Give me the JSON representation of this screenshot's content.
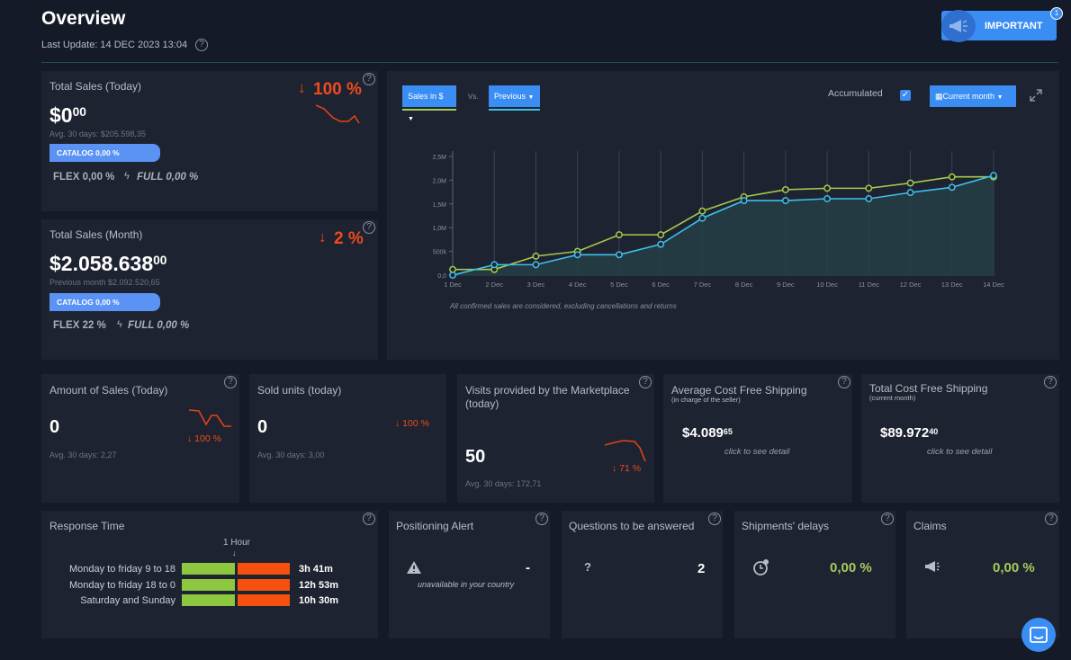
{
  "header": {
    "title": "Overview",
    "last_update": "Last Update: 14 DEC 2023 13:04",
    "important_label": "IMPORTANT",
    "important_badge": "1"
  },
  "today_sales": {
    "title": "Total Sales (Today)",
    "value_main": "$0",
    "value_cents": "00",
    "avg": "Avg. 30 days: $205.598,35",
    "change": "100 %",
    "catalog": "CATALOG 0,00 %",
    "flex": "FLEX 0,00 %",
    "full": "FULL 0,00 %"
  },
  "month_sales": {
    "title": "Total Sales (Month)",
    "value_main": "$2.058.638",
    "value_cents": "00",
    "previous": "Previous month $2.092.520,65",
    "change": "2 %",
    "catalog": "CATALOG 0,00 %",
    "flex": "FLEX 22 %",
    "full": "FULL 0,00 %"
  },
  "chart_panel": {
    "metric_select": "Sales in $",
    "vs_label": "Vs.",
    "compare_select": "Previous",
    "accumulated_label": "Accumulated",
    "accumulated_checked": true,
    "period_select": "Current month",
    "footnote": "All confirmed sales are considered, excluding cancellations and returns"
  },
  "chart_data": {
    "type": "line",
    "x": [
      "1 Dec",
      "2 Dec",
      "3 Dec",
      "4 Dec",
      "5 Dec",
      "6 Dec",
      "7 Dec",
      "8 Dec",
      "9 Dec",
      "10 Dec",
      "11 Dec",
      "12 Dec",
      "13 Dec",
      "14 Dec"
    ],
    "ytick_labels": [
      "0,0",
      "500k",
      "1,0M",
      "1,5M",
      "2,0M",
      "2,5M"
    ],
    "ylim": [
      0,
      2500000
    ],
    "series": [
      {
        "color": "#a7c94a",
        "values": [
          120000,
          120000,
          400000,
          500000,
          850000,
          850000,
          1350000,
          1650000,
          1800000,
          1830000,
          1830000,
          1940000,
          2070000,
          2070000
        ]
      },
      {
        "color": "#3ec0ea",
        "values": [
          0,
          220000,
          220000,
          430000,
          430000,
          650000,
          1200000,
          1570000,
          1570000,
          1610000,
          1610000,
          1740000,
          1850000,
          2100000
        ]
      }
    ],
    "grid": "vertical",
    "area_fill": true
  },
  "kpis": [
    {
      "title": "Amount of Sales (Today)",
      "title2": "",
      "small": "",
      "value": "0",
      "cents": "",
      "avg": "Avg. 30 days: 2,27",
      "change": "100 %",
      "detail": ""
    },
    {
      "title": "Sold units (today)",
      "title2": "",
      "small": "",
      "value": "0",
      "cents": "",
      "avg": "Avg. 30 days: 3,00",
      "change": "100 %",
      "detail": ""
    },
    {
      "title": "Visits provided by the Marketplace",
      "title2": "(today)",
      "small": "",
      "value": "50",
      "cents": "",
      "avg": "Avg. 30 days: 172,71",
      "change": "71 %",
      "detail": ""
    },
    {
      "title": "Average Cost Free Shipping",
      "title2": "",
      "small": "(in charge of the seller)",
      "value": "$4.089",
      "cents": "65",
      "avg": "",
      "change": "",
      "detail": "click to see detail"
    },
    {
      "title": "Total Cost Free Shipping",
      "title2": "",
      "small": "(current month)",
      "value": "$89.972",
      "cents": "40",
      "avg": "",
      "change": "",
      "detail": "click to see detail"
    }
  ],
  "response_time": {
    "title": "Response Time",
    "marker": "1 Hour",
    "rows": [
      {
        "label": "Monday to friday 9 to 18",
        "value": "3h 41m"
      },
      {
        "label": "Monday to friday 18 to 0",
        "value": "12h 53m"
      },
      {
        "label": "Saturday and Sunday",
        "value": "10h 30m"
      }
    ]
  },
  "bottom": [
    {
      "title": "Positioning Alert",
      "value": "-",
      "note": "unavailable in your country"
    },
    {
      "title": "Questions to be answered",
      "value": "2",
      "glyph": "?"
    },
    {
      "title": "Shipments' delays",
      "value": "0,00 %"
    },
    {
      "title": "Claims",
      "value": "0,00 %"
    }
  ],
  "colors": {
    "background": "#141a27",
    "card": "#1e2331",
    "accent_blue": "#3a8df3",
    "negative": "#ef4a1e",
    "positive": "#a5cc5a"
  }
}
